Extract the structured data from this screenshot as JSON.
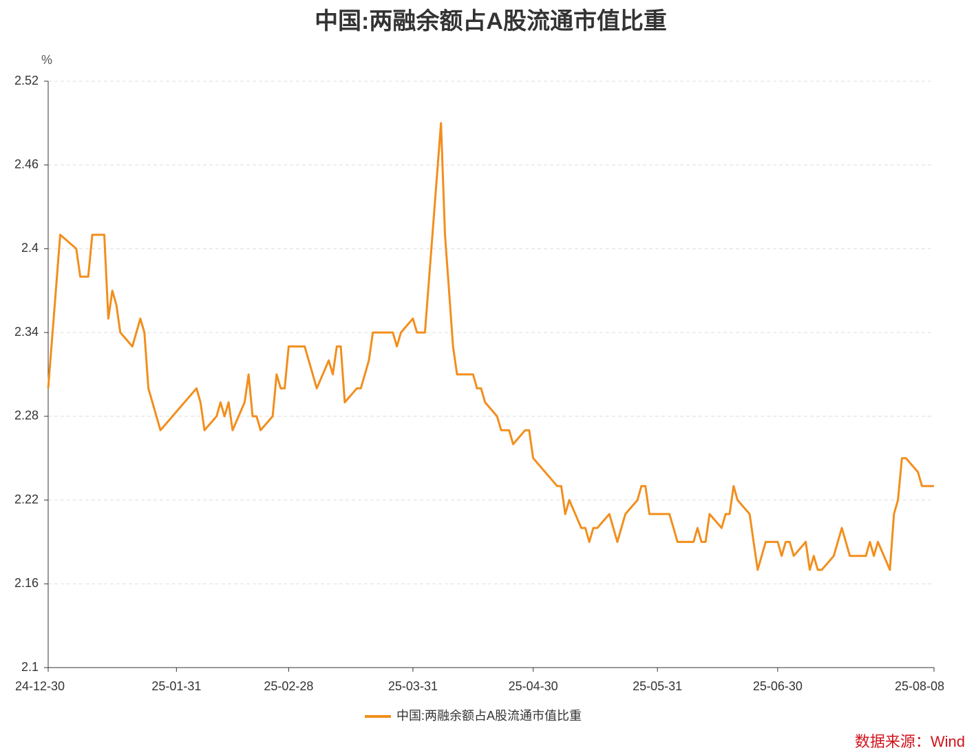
{
  "chart_data": {
    "type": "line",
    "title": "中国:两融余额占A股流通市值比重",
    "y_unit": "%",
    "source": "数据来源：Wind",
    "x": [
      "24-12-30",
      "25-01-02",
      "25-01-06",
      "25-01-07",
      "25-01-09",
      "25-01-10",
      "25-01-13",
      "25-01-14",
      "25-01-15",
      "25-01-16",
      "25-01-17",
      "25-01-20",
      "25-01-22",
      "25-01-23",
      "25-01-24",
      "25-01-27",
      "25-02-05",
      "25-02-06",
      "25-02-07",
      "25-02-10",
      "25-02-11",
      "25-02-12",
      "25-02-13",
      "25-02-14",
      "25-02-17",
      "25-02-18",
      "25-02-19",
      "25-02-20",
      "25-02-21",
      "25-02-24",
      "25-02-25",
      "25-02-26",
      "25-02-27",
      "25-02-28",
      "25-03-03",
      "25-03-04",
      "25-03-05",
      "25-03-06",
      "25-03-07",
      "25-03-10",
      "25-03-11",
      "25-03-12",
      "25-03-13",
      "25-03-14",
      "25-03-17",
      "25-03-18",
      "25-03-19",
      "25-03-20",
      "25-03-21",
      "25-03-24",
      "25-03-25",
      "25-03-26",
      "25-03-27",
      "25-03-28",
      "25-03-31",
      "25-04-01",
      "25-04-02",
      "25-04-03",
      "25-04-07",
      "25-04-08",
      "25-04-09",
      "25-04-10",
      "25-04-11",
      "25-04-14",
      "25-04-15",
      "25-04-16",
      "25-04-17",
      "25-04-18",
      "25-04-21",
      "25-04-22",
      "25-04-23",
      "25-04-24",
      "25-04-25",
      "25-04-28",
      "25-04-29",
      "25-04-30",
      "25-05-06",
      "25-05-07",
      "25-05-08",
      "25-05-09",
      "25-05-12",
      "25-05-13",
      "25-05-14",
      "25-05-15",
      "25-05-16",
      "25-05-19",
      "25-05-20",
      "25-05-21",
      "25-05-22",
      "25-05-23",
      "25-05-26",
      "25-05-27",
      "25-05-28",
      "25-05-29",
      "25-05-30",
      "25-06-03",
      "25-06-04",
      "25-06-05",
      "25-06-06",
      "25-06-09",
      "25-06-10",
      "25-06-11",
      "25-06-12",
      "25-06-13",
      "25-06-16",
      "25-06-17",
      "25-06-18",
      "25-06-19",
      "25-06-20",
      "25-06-23",
      "25-06-24",
      "25-06-25",
      "25-06-26",
      "25-06-27",
      "25-06-30",
      "25-07-01",
      "25-07-02",
      "25-07-03",
      "25-07-04",
      "25-07-07",
      "25-07-08",
      "25-07-09",
      "25-07-10",
      "25-07-11",
      "25-07-14",
      "25-07-15",
      "25-07-16",
      "25-07-17",
      "25-07-18",
      "25-07-21",
      "25-07-22",
      "25-07-23",
      "25-07-24",
      "25-07-25",
      "25-07-28",
      "25-07-29",
      "25-07-30",
      "25-07-31",
      "25-08-01",
      "25-08-04",
      "25-08-05",
      "25-08-06",
      "25-08-07",
      "25-08-08"
    ],
    "series": [
      {
        "name": "中国:两融余额占A股流通市值比重",
        "color": "#f28e1c",
        "values": [
          2.3,
          2.41,
          2.4,
          2.38,
          2.38,
          2.41,
          2.41,
          2.35,
          2.37,
          2.36,
          2.34,
          2.33,
          2.35,
          2.34,
          2.3,
          2.27,
          2.3,
          2.29,
          2.27,
          2.28,
          2.29,
          2.28,
          2.29,
          2.27,
          2.29,
          2.31,
          2.28,
          2.28,
          2.27,
          2.28,
          2.31,
          2.3,
          2.3,
          2.33,
          2.33,
          2.33,
          2.32,
          2.31,
          2.3,
          2.32,
          2.31,
          2.33,
          2.33,
          2.29,
          2.3,
          2.3,
          2.31,
          2.32,
          2.34,
          2.34,
          2.34,
          2.34,
          2.33,
          2.34,
          2.35,
          2.34,
          2.34,
          2.34,
          2.49,
          2.41,
          2.37,
          2.33,
          2.31,
          2.31,
          2.31,
          2.3,
          2.3,
          2.29,
          2.28,
          2.27,
          2.27,
          2.27,
          2.26,
          2.27,
          2.27,
          2.25,
          2.23,
          2.23,
          2.21,
          2.22,
          2.2,
          2.2,
          2.19,
          2.2,
          2.2,
          2.21,
          2.2,
          2.19,
          2.2,
          2.21,
          2.22,
          2.23,
          2.23,
          2.21,
          2.21,
          2.21,
          2.2,
          2.19,
          2.19,
          2.19,
          2.2,
          2.19,
          2.19,
          2.21,
          2.2,
          2.21,
          2.21,
          2.23,
          2.22,
          2.21,
          2.19,
          2.17,
          2.18,
          2.19,
          2.19,
          2.18,
          2.19,
          2.19,
          2.18,
          2.19,
          2.17,
          2.18,
          2.17,
          2.17,
          2.18,
          2.19,
          2.2,
          2.19,
          2.18,
          2.18,
          2.18,
          2.19,
          2.18,
          2.19,
          2.17,
          2.21,
          2.22,
          2.25,
          2.25,
          2.24,
          2.23,
          2.23,
          2.23,
          2.23
        ]
      }
    ],
    "xlim": [
      "24-12-30",
      "25-08-08"
    ],
    "xticks": [
      "24-12-30",
      "25-01-31",
      "25-02-28",
      "25-03-31",
      "25-04-30",
      "25-05-31",
      "25-06-30",
      "25-08-08"
    ],
    "ylim": [
      2.1,
      2.52
    ],
    "yticks": [
      2.1,
      2.16,
      2.22,
      2.28,
      2.34,
      2.4,
      2.46,
      2.52
    ],
    "grid": true,
    "legend": "bottom"
  }
}
